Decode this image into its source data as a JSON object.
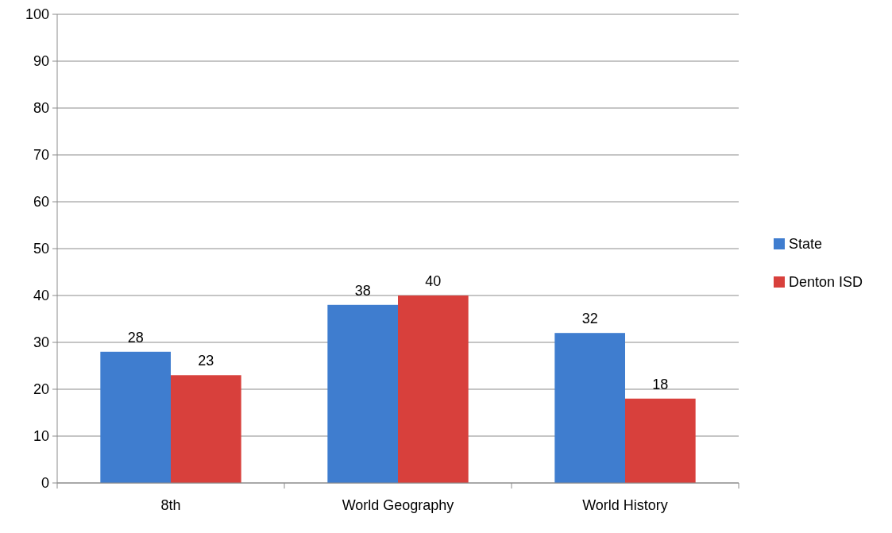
{
  "chart_data": {
    "type": "bar",
    "categories": [
      "8th",
      "World Geography",
      "World History"
    ],
    "series": [
      {
        "name": "State",
        "color": "#3f7dcf",
        "values": [
          28,
          38,
          32
        ]
      },
      {
        "name": "Denton ISD",
        "color": "#d8403c",
        "values": [
          23,
          40,
          18
        ]
      }
    ],
    "ylim": [
      0,
      100
    ],
    "yticks": [
      0,
      10,
      20,
      30,
      40,
      50,
      60,
      70,
      80,
      90,
      100
    ],
    "grid": "y",
    "legend": "right",
    "data_labels": true
  }
}
